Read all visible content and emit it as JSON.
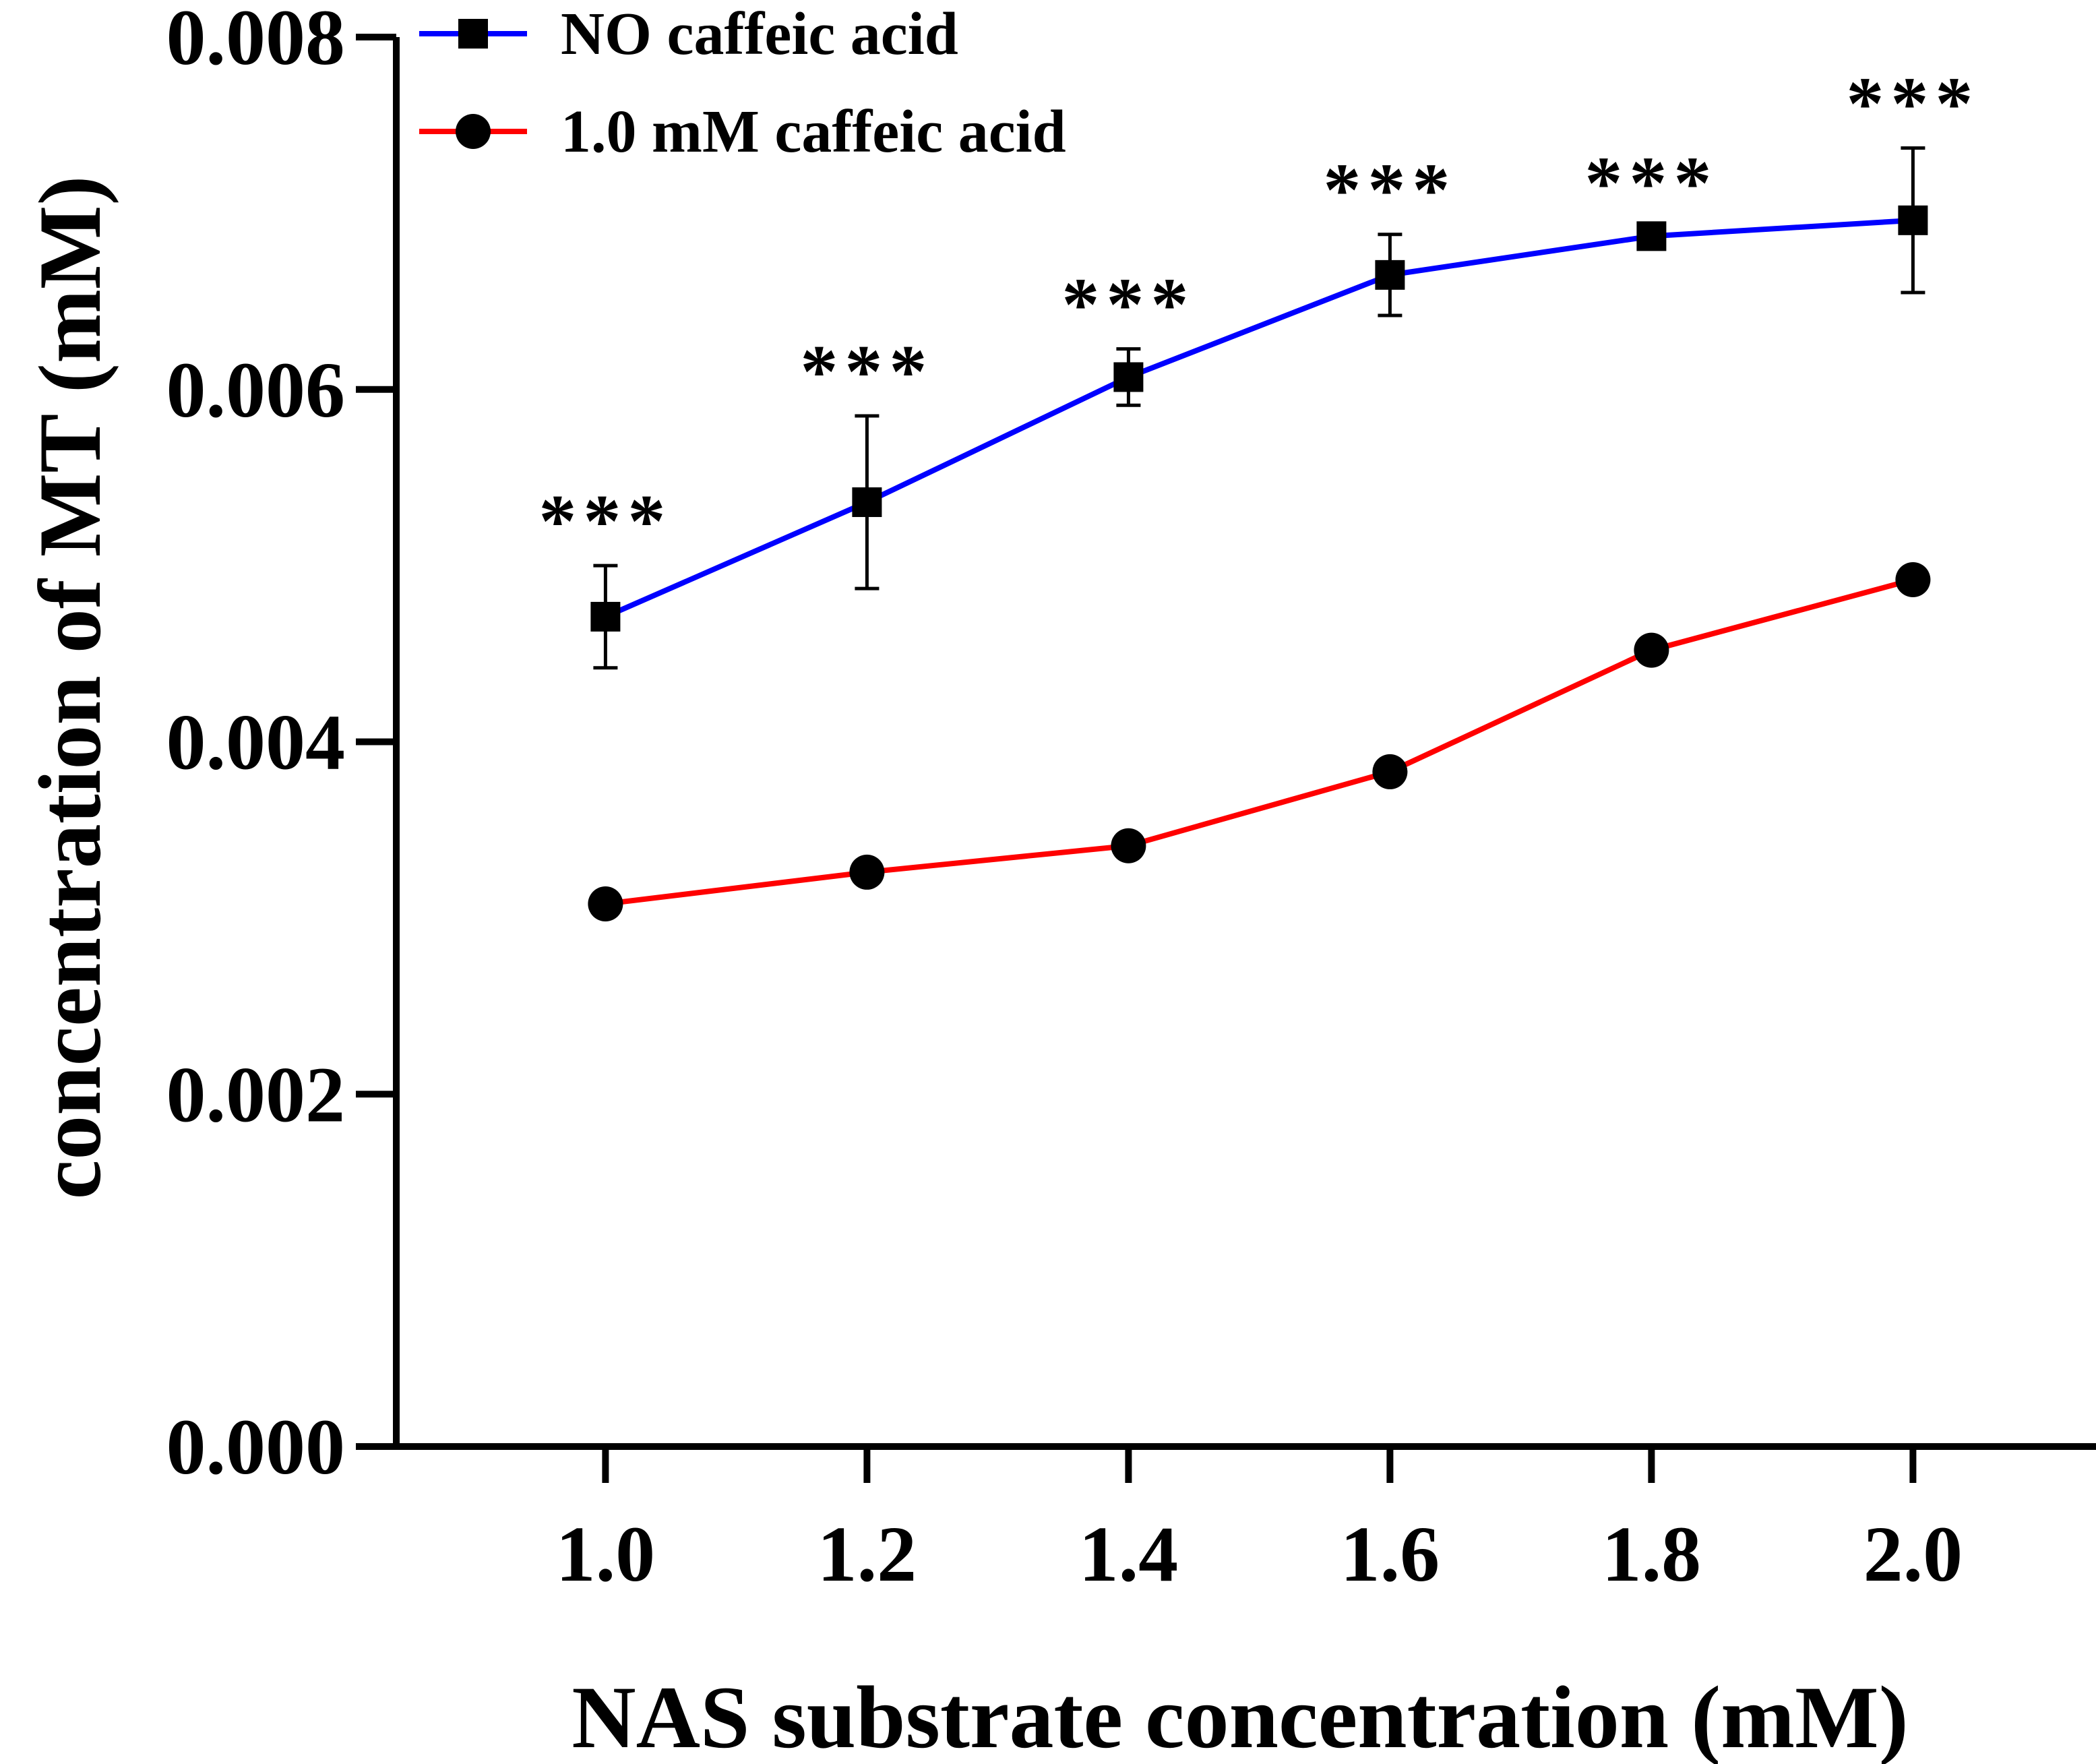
{
  "chart_data": {
    "type": "line",
    "title": "",
    "xlabel": "NAS substrate concentration (mM)",
    "ylabel": "concentration of MT (mM)",
    "x": [
      1.0,
      1.2,
      1.4,
      1.6,
      1.8,
      2.0
    ],
    "x_tick_labels": [
      "1.0",
      "1.2",
      "1.4",
      "1.6",
      "1.8",
      "2.0"
    ],
    "y_ticks": [
      0.0,
      0.002,
      0.004,
      0.006,
      0.008
    ],
    "y_tick_labels": [
      "0.000",
      "0.002",
      "0.004",
      "0.006",
      "0.008"
    ],
    "xlim": [
      0.84,
      2.14
    ],
    "ylim": [
      0.0,
      0.008
    ],
    "legend_position": "top-left",
    "series": [
      {
        "name": "NO caffeic acid",
        "color": "#0000ff",
        "marker": "square",
        "values": [
          0.00471,
          0.00536,
          0.00607,
          0.00665,
          0.00687,
          0.00696
        ],
        "error": [
          0.00029,
          0.00049,
          0.00016,
          0.00023,
          5e-05,
          0.00041
        ]
      },
      {
        "name": "1.0 mM caffeic acid",
        "color": "#ff0000",
        "marker": "circle",
        "values": [
          0.00308,
          0.00326,
          0.00341,
          0.00383,
          0.00452,
          0.00492
        ],
        "error": [
          0,
          0,
          0,
          0,
          0,
          0
        ]
      }
    ],
    "annotations": [
      "***",
      "***",
      "***",
      "***",
      "***",
      "***"
    ]
  }
}
